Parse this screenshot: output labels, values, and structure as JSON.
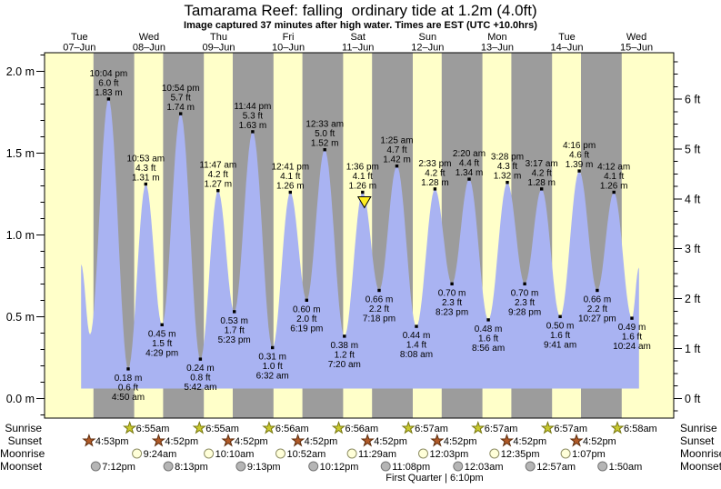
{
  "title": "Tamarama Reef: falling  ordinary tide at 1.2m (4.0ft)",
  "subtitle": "Image captured 37 minutes after high water. Times are EST (UTC +10.0hrs)",
  "colors": {
    "day_band": "#ffffc9",
    "night_band": "#9c9c9c",
    "tide_fill": "#a9b3f2",
    "date_label": "#ff2a2a",
    "marker_fill": "#ffee22",
    "frame": "#000000"
  },
  "chart_data": {
    "type": "area",
    "title": "Tamarama Reef: falling  ordinary tide at 1.2m (4.0ft)",
    "x_days": [
      {
        "weekday": "Tue",
        "date": "07–Jun"
      },
      {
        "weekday": "Wed",
        "date": "08–Jun"
      },
      {
        "weekday": "Thu",
        "date": "09–Jun"
      },
      {
        "weekday": "Fri",
        "date": "10–Jun"
      },
      {
        "weekday": "Sat",
        "date": "11–Jun"
      },
      {
        "weekday": "Sun",
        "date": "12–Jun"
      },
      {
        "weekday": "Mon",
        "date": "13–Jun"
      },
      {
        "weekday": "Tue",
        "date": "14–Jun"
      },
      {
        "weekday": "Wed",
        "date": "15–Jun"
      }
    ],
    "y_axis_left": {
      "unit": "m",
      "ticks": [
        {
          "label": "2.0 m",
          "value": 2.0
        },
        {
          "label": "1.5 m",
          "value": 1.5
        },
        {
          "label": "1.0 m",
          "value": 1.0
        },
        {
          "label": "0.5 m",
          "value": 0.5
        },
        {
          "label": "0.0 m",
          "value": 0.0
        }
      ],
      "minor_step": 0.1
    },
    "y_axis_right": {
      "unit": "ft",
      "ticks": [
        {
          "label": "6 ft",
          "value": 6
        },
        {
          "label": "5 ft",
          "value": 5
        },
        {
          "label": "4 ft",
          "value": 4
        },
        {
          "label": "3 ft",
          "value": 3
        },
        {
          "label": "2 ft",
          "value": 2
        },
        {
          "label": "1 ft",
          "value": 1
        },
        {
          "label": "0 ft",
          "value": 0
        }
      ],
      "minor_step": 0.25
    },
    "extremes": [
      {
        "day": 0,
        "time": "12:35 pm",
        "m": 0.82,
        "kind": "edge",
        "labeled": false
      },
      {
        "day": 0,
        "time": "3:40 pm",
        "m": 0.39,
        "kind": "low",
        "labeled": false
      },
      {
        "day": 0,
        "time": "10:04 pm",
        "m": 1.83,
        "ft": "6.0",
        "kind": "high",
        "labeled": true
      },
      {
        "day": 1,
        "time": "4:50 am",
        "m": 0.18,
        "ft": "0.6",
        "kind": "low",
        "labeled": true
      },
      {
        "day": 1,
        "time": "10:53 am",
        "m": 1.31,
        "ft": "4.3",
        "kind": "high",
        "labeled": true
      },
      {
        "day": 1,
        "time": "4:29 pm",
        "m": 0.45,
        "ft": "1.5",
        "kind": "low",
        "labeled": true
      },
      {
        "day": 1,
        "time": "10:54 pm",
        "m": 1.74,
        "ft": "5.7",
        "kind": "high",
        "labeled": true
      },
      {
        "day": 2,
        "time": "5:42 am",
        "m": 0.24,
        "ft": "0.8",
        "kind": "low",
        "labeled": true
      },
      {
        "day": 2,
        "time": "11:47 am",
        "m": 1.27,
        "ft": "4.2",
        "kind": "high",
        "labeled": true
      },
      {
        "day": 2,
        "time": "5:23 pm",
        "m": 0.53,
        "ft": "1.7",
        "kind": "low",
        "labeled": true
      },
      {
        "day": 2,
        "time": "11:44 pm",
        "m": 1.63,
        "ft": "5.3",
        "kind": "high",
        "labeled": true
      },
      {
        "day": 3,
        "time": "6:32 am",
        "m": 0.31,
        "ft": "1.0",
        "kind": "low",
        "labeled": true
      },
      {
        "day": 3,
        "time": "12:41 pm",
        "m": 1.26,
        "ft": "4.1",
        "kind": "high",
        "labeled": true
      },
      {
        "day": 3,
        "time": "6:19 pm",
        "m": 0.6,
        "ft": "2.0",
        "kind": "low",
        "labeled": true
      },
      {
        "day": 4,
        "time": "12:33 am",
        "m": 1.52,
        "ft": "5.0",
        "kind": "high",
        "labeled": true
      },
      {
        "day": 4,
        "time": "7:20 am",
        "m": 0.38,
        "ft": "1.2",
        "kind": "low",
        "labeled": true
      },
      {
        "day": 4,
        "time": "1:36 pm",
        "m": 1.26,
        "ft": "4.1",
        "kind": "high",
        "labeled": true
      },
      {
        "day": 4,
        "time": "7:18 pm",
        "m": 0.66,
        "ft": "2.2",
        "kind": "low",
        "labeled": true
      },
      {
        "day": 5,
        "time": "1:25 am",
        "m": 1.42,
        "ft": "4.7",
        "kind": "high",
        "labeled": true
      },
      {
        "day": 5,
        "time": "8:08 am",
        "m": 0.44,
        "ft": "1.4",
        "kind": "low",
        "labeled": true
      },
      {
        "day": 5,
        "time": "2:33 pm",
        "m": 1.28,
        "ft": "4.2",
        "kind": "high",
        "labeled": true
      },
      {
        "day": 5,
        "time": "8:23 pm",
        "m": 0.7,
        "ft": "2.3",
        "kind": "low",
        "labeled": true
      },
      {
        "day": 6,
        "time": "2:20 am",
        "m": 1.34,
        "ft": "4.4",
        "kind": "high",
        "labeled": true
      },
      {
        "day": 6,
        "time": "8:56 am",
        "m": 0.48,
        "ft": "1.6",
        "kind": "low",
        "labeled": true
      },
      {
        "day": 6,
        "time": "3:28 pm",
        "m": 1.32,
        "ft": "4.3",
        "kind": "high",
        "labeled": true
      },
      {
        "day": 6,
        "time": "9:28 pm",
        "m": 0.7,
        "ft": "2.3",
        "kind": "low",
        "labeled": true
      },
      {
        "day": 7,
        "time": "3:17 am",
        "m": 1.28,
        "ft": "4.2",
        "kind": "high",
        "labeled": true
      },
      {
        "day": 7,
        "time": "9:41 am",
        "m": 0.5,
        "ft": "1.6",
        "kind": "low",
        "labeled": true
      },
      {
        "day": 7,
        "time": "4:16 pm",
        "m": 1.39,
        "ft": "4.6",
        "kind": "high",
        "labeled": true
      },
      {
        "day": 7,
        "time": "10:27 pm",
        "m": 0.66,
        "ft": "2.2",
        "kind": "low",
        "labeled": true
      },
      {
        "day": 8,
        "time": "4:12 am",
        "m": 1.26,
        "ft": "4.1",
        "kind": "high",
        "labeled": true
      },
      {
        "day": 8,
        "time": "10:24 am",
        "m": 0.49,
        "ft": "1.6",
        "kind": "low",
        "labeled": true
      },
      {
        "day": 8,
        "time": "12:50 pm",
        "m": 0.8,
        "kind": "edge",
        "labeled": false
      }
    ],
    "current_time_marker": {
      "day": 4,
      "time": "2:13 pm"
    },
    "day_night": {
      "sunrise_hour_approx": 6.92,
      "sunset_hour_approx": 16.87
    }
  },
  "almanac": {
    "rows": [
      {
        "label": "Sunrise",
        "icon": "sunrise-star",
        "events": [
          {
            "day": 1,
            "time": "6:55am"
          },
          {
            "day": 2,
            "time": "6:55am"
          },
          {
            "day": 3,
            "time": "6:56am"
          },
          {
            "day": 4,
            "time": "6:56am"
          },
          {
            "day": 5,
            "time": "6:57am"
          },
          {
            "day": 6,
            "time": "6:57am"
          },
          {
            "day": 7,
            "time": "6:57am"
          },
          {
            "day": 8,
            "time": "6:58am"
          }
        ]
      },
      {
        "label": "Sunset",
        "icon": "sunset-star",
        "events": [
          {
            "day": 0,
            "time": "4:53pm"
          },
          {
            "day": 1,
            "time": "4:52pm"
          },
          {
            "day": 2,
            "time": "4:52pm"
          },
          {
            "day": 3,
            "time": "4:52pm"
          },
          {
            "day": 4,
            "time": "4:52pm"
          },
          {
            "day": 5,
            "time": "4:52pm"
          },
          {
            "day": 6,
            "time": "4:52pm"
          },
          {
            "day": 7,
            "time": "4:52pm"
          }
        ]
      },
      {
        "label": "Moonrise",
        "icon": "moonrise-circle",
        "events": [
          {
            "day": 1,
            "time": "9:24am"
          },
          {
            "day": 2,
            "time": "10:10am"
          },
          {
            "day": 3,
            "time": "10:52am"
          },
          {
            "day": 4,
            "time": "11:29am"
          },
          {
            "day": 5,
            "time": "12:03pm"
          },
          {
            "day": 6,
            "time": "12:35pm"
          },
          {
            "day": 7,
            "time": "1:07pm"
          }
        ]
      },
      {
        "label": "Moonset",
        "icon": "moonset-circle",
        "events": [
          {
            "day": 0,
            "time": "7:12pm"
          },
          {
            "day": 1,
            "time": "8:13pm"
          },
          {
            "day": 2,
            "time": "9:13pm"
          },
          {
            "day": 3,
            "time": "10:12pm"
          },
          {
            "day": 4,
            "time": "11:08pm"
          },
          {
            "day": 6,
            "time": "12:03am"
          },
          {
            "day": 7,
            "time": "12:57am"
          },
          {
            "day": 8,
            "time": "1:50am"
          }
        ]
      }
    ],
    "moon_phase": "First Quarter | 6:10pm"
  }
}
